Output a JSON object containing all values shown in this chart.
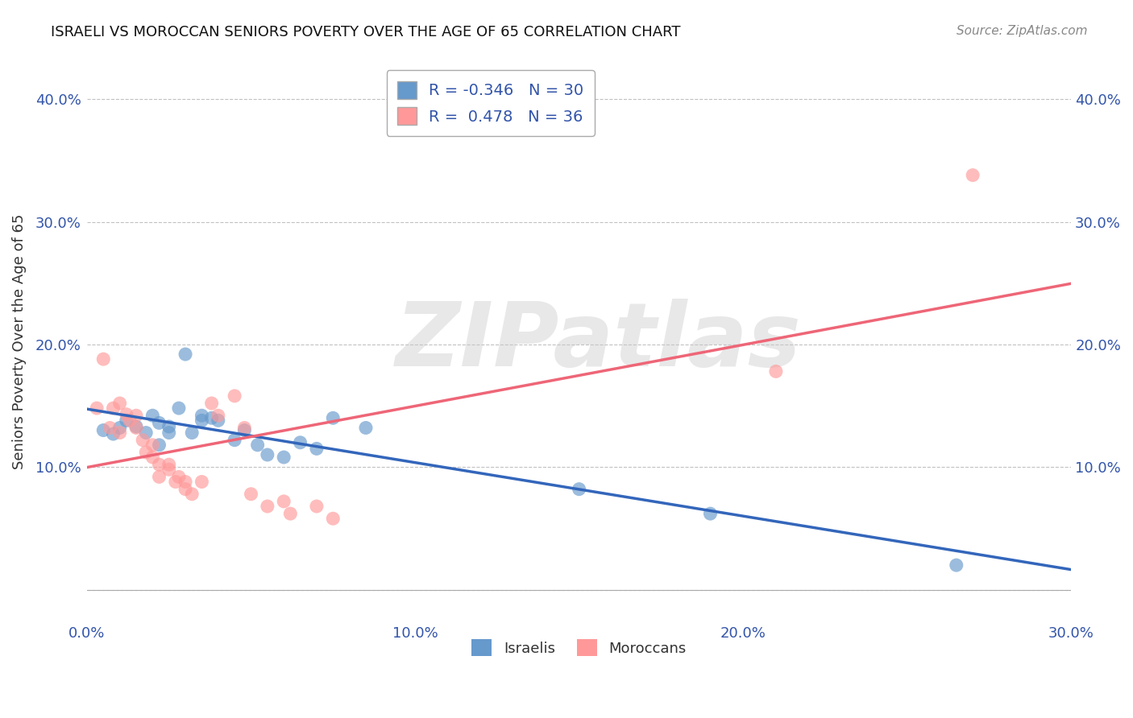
{
  "title": "ISRAELI VS MOROCCAN SENIORS POVERTY OVER THE AGE OF 65 CORRELATION CHART",
  "source": "Source: ZipAtlas.com",
  "ylabel": "Seniors Poverty Over the Age of 65",
  "xlim": [
    0.0,
    0.3
  ],
  "ylim": [
    -0.025,
    0.43
  ],
  "yticks": [
    0.0,
    0.1,
    0.2,
    0.3,
    0.4
  ],
  "xticks": [
    0.0,
    0.1,
    0.2,
    0.3
  ],
  "ytick_labels_left": [
    "",
    "10.0%",
    "20.0%",
    "30.0%",
    "40.0%"
  ],
  "ytick_labels_right": [
    "",
    "10.0%",
    "20.0%",
    "30.0%",
    "40.0%"
  ],
  "xtick_labels": [
    "0.0%",
    "10.0%",
    "20.0%",
    "30.0%"
  ],
  "legend_R_israeli": "-0.346",
  "legend_N_israeli": "30",
  "legend_R_moroccan": "0.478",
  "legend_N_moroccan": "36",
  "watermark": "ZIPatlas",
  "israeli_color": "#6699CC",
  "moroccan_color": "#FF9999",
  "israeli_line_color": "#3366BB",
  "moroccan_line_color": "#EE6677",
  "israeli_points": [
    [
      0.005,
      0.13
    ],
    [
      0.008,
      0.127
    ],
    [
      0.01,
      0.132
    ],
    [
      0.012,
      0.138
    ],
    [
      0.015,
      0.133
    ],
    [
      0.018,
      0.128
    ],
    [
      0.02,
      0.142
    ],
    [
      0.022,
      0.136
    ],
    [
      0.022,
      0.118
    ],
    [
      0.025,
      0.133
    ],
    [
      0.025,
      0.128
    ],
    [
      0.028,
      0.148
    ],
    [
      0.03,
      0.192
    ],
    [
      0.032,
      0.128
    ],
    [
      0.035,
      0.138
    ],
    [
      0.035,
      0.142
    ],
    [
      0.038,
      0.14
    ],
    [
      0.04,
      0.138
    ],
    [
      0.045,
      0.122
    ],
    [
      0.048,
      0.13
    ],
    [
      0.052,
      0.118
    ],
    [
      0.055,
      0.11
    ],
    [
      0.06,
      0.108
    ],
    [
      0.065,
      0.12
    ],
    [
      0.07,
      0.115
    ],
    [
      0.075,
      0.14
    ],
    [
      0.085,
      0.132
    ],
    [
      0.15,
      0.082
    ],
    [
      0.19,
      0.062
    ],
    [
      0.265,
      0.02
    ]
  ],
  "moroccan_points": [
    [
      0.003,
      0.148
    ],
    [
      0.005,
      0.188
    ],
    [
      0.007,
      0.132
    ],
    [
      0.008,
      0.148
    ],
    [
      0.01,
      0.152
    ],
    [
      0.01,
      0.128
    ],
    [
      0.012,
      0.143
    ],
    [
      0.013,
      0.138
    ],
    [
      0.015,
      0.132
    ],
    [
      0.015,
      0.142
    ],
    [
      0.017,
      0.122
    ],
    [
      0.018,
      0.112
    ],
    [
      0.02,
      0.108
    ],
    [
      0.02,
      0.118
    ],
    [
      0.022,
      0.102
    ],
    [
      0.022,
      0.092
    ],
    [
      0.025,
      0.102
    ],
    [
      0.025,
      0.098
    ],
    [
      0.027,
      0.088
    ],
    [
      0.028,
      0.092
    ],
    [
      0.03,
      0.082
    ],
    [
      0.03,
      0.088
    ],
    [
      0.032,
      0.078
    ],
    [
      0.035,
      0.088
    ],
    [
      0.038,
      0.152
    ],
    [
      0.04,
      0.142
    ],
    [
      0.045,
      0.158
    ],
    [
      0.048,
      0.132
    ],
    [
      0.05,
      0.078
    ],
    [
      0.055,
      0.068
    ],
    [
      0.06,
      0.072
    ],
    [
      0.062,
      0.062
    ],
    [
      0.07,
      0.068
    ],
    [
      0.075,
      0.058
    ],
    [
      0.21,
      0.178
    ],
    [
      0.27,
      0.338
    ]
  ],
  "background_color": "#FFFFFF",
  "grid_color": "#BBBBBB",
  "title_color": "#111111",
  "axis_label_color": "#333333",
  "tick_color": "#3355AA"
}
